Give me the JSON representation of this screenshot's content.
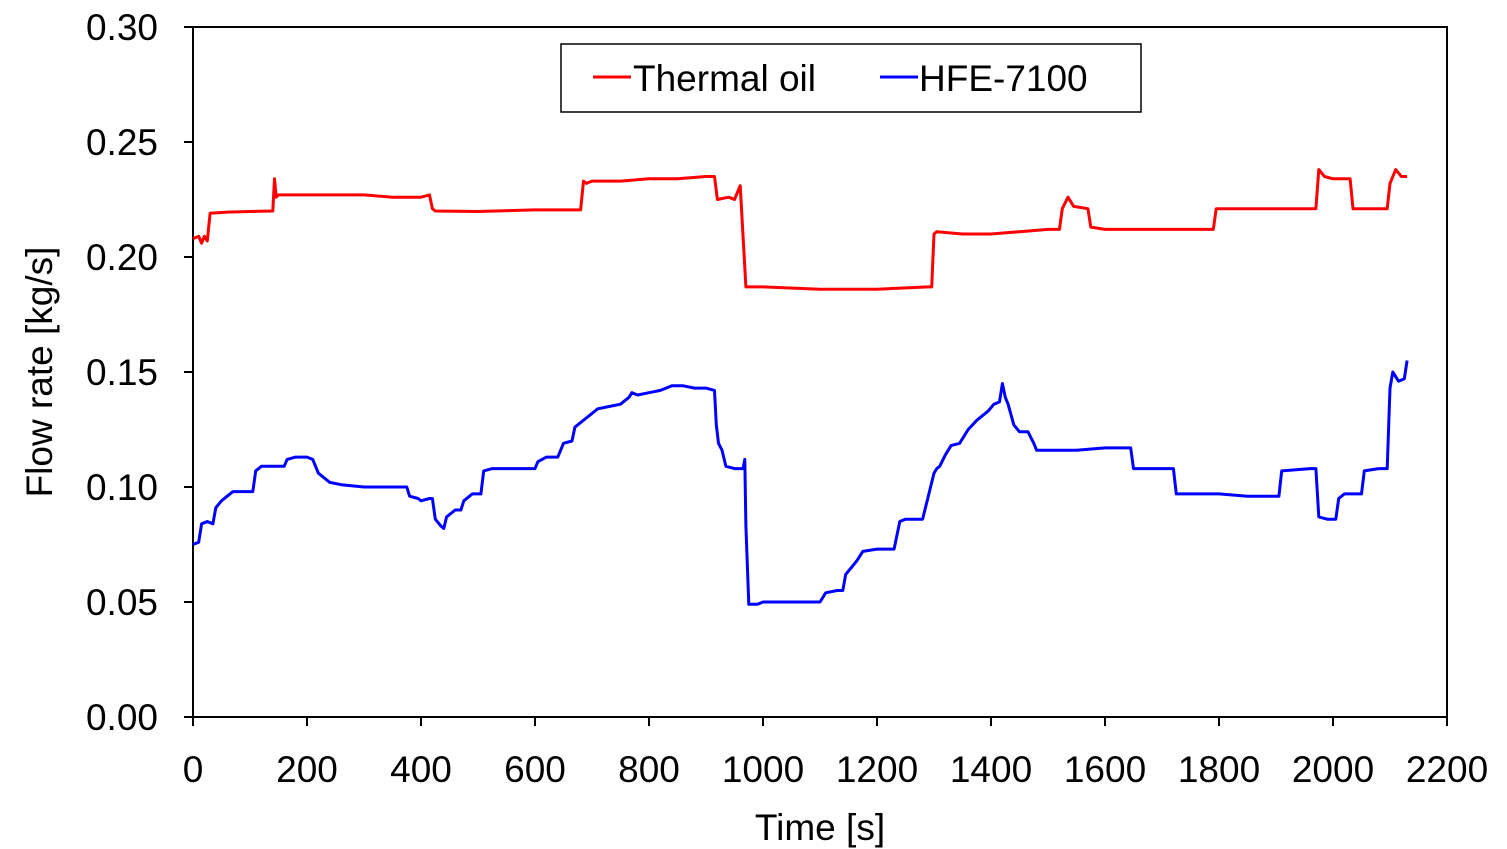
{
  "chart_data": {
    "type": "line",
    "title": "",
    "xlabel": "Time [s]",
    "ylabel": "Flow rate [kg/s]",
    "xlim": [
      0,
      2200
    ],
    "ylim": [
      0,
      0.3
    ],
    "x_ticks": [
      0,
      200,
      400,
      600,
      800,
      1000,
      1200,
      1400,
      1600,
      1800,
      2000,
      2200
    ],
    "x_tick_labels": [
      "0",
      "200",
      "400",
      "600",
      "800",
      "1000",
      "1200",
      "1400",
      "1600",
      "1800",
      "2000",
      "2200"
    ],
    "y_ticks": [
      0,
      0.05,
      0.1,
      0.15,
      0.2,
      0.25,
      0.3
    ],
    "y_tick_labels": [
      "0.00",
      "0.05",
      "0.10",
      "0.15",
      "0.20",
      "0.25",
      "0.30"
    ],
    "grid": false,
    "legend_position": "top-center",
    "series": [
      {
        "name": "Thermal oil",
        "color": "#ff0000",
        "points": [
          [
            0,
            0.208
          ],
          [
            10,
            0.209
          ],
          [
            15,
            0.206
          ],
          [
            20,
            0.209
          ],
          [
            25,
            0.207
          ],
          [
            30,
            0.219
          ],
          [
            60,
            0.2195
          ],
          [
            100,
            0.2198
          ],
          [
            140,
            0.22
          ],
          [
            143,
            0.234
          ],
          [
            146,
            0.226
          ],
          [
            150,
            0.227
          ],
          [
            200,
            0.227
          ],
          [
            250,
            0.227
          ],
          [
            300,
            0.227
          ],
          [
            350,
            0.226
          ],
          [
            400,
            0.226
          ],
          [
            415,
            0.227
          ],
          [
            420,
            0.221
          ],
          [
            425,
            0.22
          ],
          [
            500,
            0.2198
          ],
          [
            600,
            0.2205
          ],
          [
            680,
            0.2205
          ],
          [
            685,
            0.233
          ],
          [
            690,
            0.232
          ],
          [
            700,
            0.233
          ],
          [
            750,
            0.233
          ],
          [
            800,
            0.234
          ],
          [
            850,
            0.234
          ],
          [
            900,
            0.235
          ],
          [
            915,
            0.235
          ],
          [
            920,
            0.225
          ],
          [
            940,
            0.226
          ],
          [
            950,
            0.225
          ],
          [
            960,
            0.231
          ],
          [
            970,
            0.187
          ],
          [
            1000,
            0.187
          ],
          [
            1100,
            0.186
          ],
          [
            1200,
            0.186
          ],
          [
            1290,
            0.187
          ],
          [
            1296,
            0.187
          ],
          [
            1300,
            0.21
          ],
          [
            1305,
            0.211
          ],
          [
            1350,
            0.21
          ],
          [
            1400,
            0.21
          ],
          [
            1450,
            0.211
          ],
          [
            1500,
            0.212
          ],
          [
            1520,
            0.212
          ],
          [
            1525,
            0.221
          ],
          [
            1535,
            0.226
          ],
          [
            1545,
            0.222
          ],
          [
            1570,
            0.221
          ],
          [
            1575,
            0.213
          ],
          [
            1600,
            0.212
          ],
          [
            1700,
            0.212
          ],
          [
            1790,
            0.212
          ],
          [
            1795,
            0.221
          ],
          [
            1850,
            0.221
          ],
          [
            1900,
            0.221
          ],
          [
            1970,
            0.221
          ],
          [
            1975,
            0.238
          ],
          [
            1985,
            0.235
          ],
          [
            2000,
            0.234
          ],
          [
            2030,
            0.234
          ],
          [
            2035,
            0.221
          ],
          [
            2060,
            0.221
          ],
          [
            2095,
            0.221
          ],
          [
            2100,
            0.232
          ],
          [
            2110,
            0.238
          ],
          [
            2120,
            0.235
          ],
          [
            2130,
            0.235
          ]
        ]
      },
      {
        "name": "HFE-7100",
        "color": "#0000ff",
        "points": [
          [
            0,
            0.075
          ],
          [
            10,
            0.076
          ],
          [
            15,
            0.084
          ],
          [
            25,
            0.085
          ],
          [
            35,
            0.084
          ],
          [
            40,
            0.091
          ],
          [
            50,
            0.094
          ],
          [
            60,
            0.096
          ],
          [
            70,
            0.098
          ],
          [
            90,
            0.098
          ],
          [
            105,
            0.098
          ],
          [
            110,
            0.107
          ],
          [
            120,
            0.109
          ],
          [
            160,
            0.109
          ],
          [
            165,
            0.112
          ],
          [
            180,
            0.113
          ],
          [
            200,
            0.113
          ],
          [
            210,
            0.112
          ],
          [
            220,
            0.106
          ],
          [
            240,
            0.102
          ],
          [
            260,
            0.101
          ],
          [
            300,
            0.1
          ],
          [
            340,
            0.1
          ],
          [
            375,
            0.1
          ],
          [
            380,
            0.096
          ],
          [
            395,
            0.095
          ],
          [
            400,
            0.094
          ],
          [
            415,
            0.095
          ],
          [
            420,
            0.095
          ],
          [
            425,
            0.086
          ],
          [
            435,
            0.083
          ],
          [
            440,
            0.082
          ],
          [
            445,
            0.087
          ],
          [
            450,
            0.088
          ],
          [
            460,
            0.09
          ],
          [
            470,
            0.09
          ],
          [
            475,
            0.094
          ],
          [
            490,
            0.097
          ],
          [
            505,
            0.097
          ],
          [
            510,
            0.107
          ],
          [
            525,
            0.108
          ],
          [
            560,
            0.108
          ],
          [
            600,
            0.108
          ],
          [
            605,
            0.111
          ],
          [
            620,
            0.113
          ],
          [
            640,
            0.113
          ],
          [
            650,
            0.119
          ],
          [
            665,
            0.12
          ],
          [
            670,
            0.126
          ],
          [
            680,
            0.128
          ],
          [
            690,
            0.13
          ],
          [
            700,
            0.132
          ],
          [
            710,
            0.134
          ],
          [
            730,
            0.135
          ],
          [
            750,
            0.136
          ],
          [
            765,
            0.139
          ],
          [
            770,
            0.141
          ],
          [
            780,
            0.14
          ],
          [
            800,
            0.141
          ],
          [
            820,
            0.142
          ],
          [
            840,
            0.144
          ],
          [
            860,
            0.144
          ],
          [
            880,
            0.143
          ],
          [
            900,
            0.143
          ],
          [
            915,
            0.142
          ],
          [
            918,
            0.127
          ],
          [
            922,
            0.119
          ],
          [
            928,
            0.116
          ],
          [
            935,
            0.109
          ],
          [
            950,
            0.108
          ],
          [
            965,
            0.108
          ],
          [
            968,
            0.112
          ],
          [
            970,
            0.083
          ],
          [
            975,
            0.049
          ],
          [
            990,
            0.049
          ],
          [
            1000,
            0.05
          ],
          [
            1050,
            0.05
          ],
          [
            1100,
            0.05
          ],
          [
            1110,
            0.054
          ],
          [
            1130,
            0.055
          ],
          [
            1140,
            0.055
          ],
          [
            1145,
            0.062
          ],
          [
            1155,
            0.065
          ],
          [
            1165,
            0.068
          ],
          [
            1175,
            0.072
          ],
          [
            1200,
            0.073
          ],
          [
            1230,
            0.073
          ],
          [
            1240,
            0.085
          ],
          [
            1250,
            0.086
          ],
          [
            1280,
            0.086
          ],
          [
            1290,
            0.096
          ],
          [
            1300,
            0.106
          ],
          [
            1305,
            0.108
          ],
          [
            1310,
            0.109
          ],
          [
            1320,
            0.114
          ],
          [
            1330,
            0.118
          ],
          [
            1345,
            0.119
          ],
          [
            1360,
            0.125
          ],
          [
            1375,
            0.129
          ],
          [
            1395,
            0.133
          ],
          [
            1405,
            0.136
          ],
          [
            1415,
            0.137
          ],
          [
            1420,
            0.145
          ],
          [
            1425,
            0.139
          ],
          [
            1430,
            0.136
          ],
          [
            1440,
            0.127
          ],
          [
            1450,
            0.124
          ],
          [
            1465,
            0.124
          ],
          [
            1475,
            0.119
          ],
          [
            1480,
            0.116
          ],
          [
            1500,
            0.116
          ],
          [
            1550,
            0.116
          ],
          [
            1600,
            0.117
          ],
          [
            1645,
            0.117
          ],
          [
            1650,
            0.108
          ],
          [
            1700,
            0.108
          ],
          [
            1720,
            0.108
          ],
          [
            1725,
            0.097
          ],
          [
            1800,
            0.097
          ],
          [
            1850,
            0.096
          ],
          [
            1905,
            0.096
          ],
          [
            1910,
            0.107
          ],
          [
            1960,
            0.108
          ],
          [
            1970,
            0.108
          ],
          [
            1975,
            0.087
          ],
          [
            1990,
            0.086
          ],
          [
            2005,
            0.086
          ],
          [
            2010,
            0.095
          ],
          [
            2020,
            0.097
          ],
          [
            2050,
            0.097
          ],
          [
            2055,
            0.107
          ],
          [
            2080,
            0.108
          ],
          [
            2095,
            0.108
          ],
          [
            2100,
            0.143
          ],
          [
            2105,
            0.15
          ],
          [
            2115,
            0.146
          ],
          [
            2125,
            0.147
          ],
          [
            2130,
            0.155
          ]
        ]
      }
    ]
  }
}
